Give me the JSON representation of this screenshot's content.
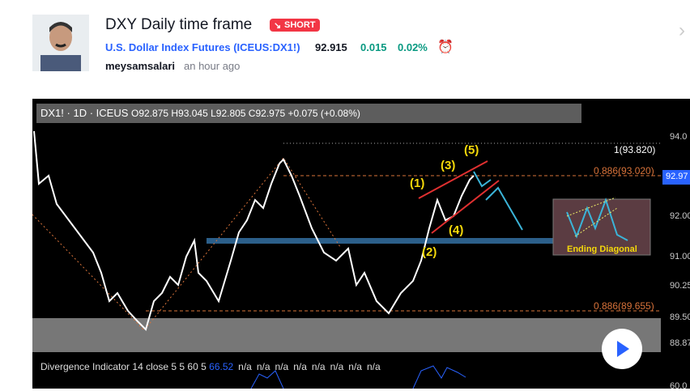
{
  "header": {
    "title": "DXY Daily time frame",
    "badge": "SHORT",
    "symbol_name": "U.S. Dollar Index Futures",
    "ticker": "(ICEUS:DX1!)",
    "price": "92.915",
    "change": "0.015",
    "change_pct": "0.02%",
    "author": "meysamsalari",
    "time": "an hour ago"
  },
  "chart": {
    "legend": {
      "symbol": "DX1!",
      "interval": "1D",
      "exchange": "ICEUS",
      "ohlc": "O92.875 H93.045 L92.805 C92.975 +0.075 (+0.08%)"
    },
    "price_axis": [
      "94.0",
      "92.97",
      "92.00",
      "91.00",
      "90.25",
      "89.50",
      "88.87",
      "60.0"
    ],
    "levels": {
      "top": "1(93.820)",
      "upper": "0.886(93.020)",
      "lower": "0.886(89.655)"
    },
    "waves": [
      "(1)",
      "(2)",
      "(3)",
      "(4)",
      "(5)"
    ],
    "pattern_label": "Ending Diagonal",
    "indicator": {
      "name": "Divergence Indicator 14 close 5 5 60 5",
      "value": "66.52",
      "others": [
        "n/a",
        "n/a",
        "n/a",
        "n/a",
        "n/a",
        "n/a",
        "n/a",
        "n/a"
      ]
    }
  }
}
